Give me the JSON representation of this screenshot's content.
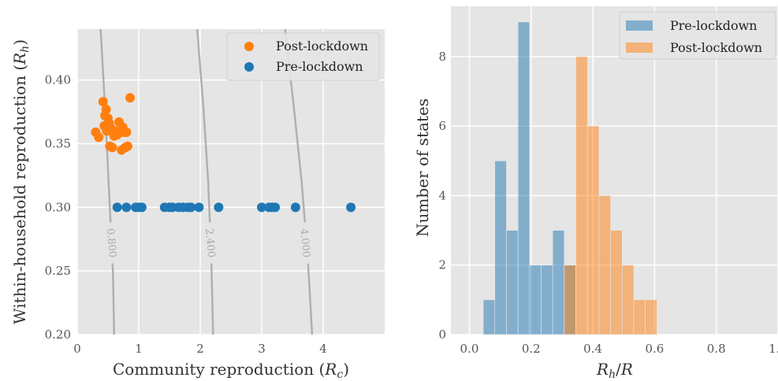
{
  "chart_data": [
    {
      "type": "scatter",
      "xlabel": "Community reproduction (R_c)",
      "xlabel_main": "Community reproduction (",
      "xlabel_sym": "R",
      "xlabel_sub": "c",
      "xlabel_end": ")",
      "ylabel_main": "Within-household reproduction (",
      "ylabel_sym": "R",
      "ylabel_sub": "h",
      "ylabel_end": ")",
      "xlim": [
        0,
        5
      ],
      "ylim": [
        0.2,
        0.44
      ],
      "xticks": [
        0,
        1,
        2,
        3,
        4
      ],
      "yticks": [
        0.2,
        0.25,
        0.3,
        0.35,
        0.4
      ],
      "ytick_labels": [
        "0.20",
        "0.25",
        "0.30",
        "0.35",
        "0.40"
      ],
      "grid": true,
      "legend_position": "top-right",
      "colors": {
        "post": "#ff7f0e",
        "pre": "#1f77b4",
        "contour": "#b0b0b0",
        "background": "#e5e5e5"
      },
      "contours": [
        {
          "label": "0.800",
          "points": [
            [
              0.38,
              0.44
            ],
            [
              0.45,
              0.38
            ],
            [
              0.52,
              0.31
            ],
            [
              0.58,
              0.25
            ],
            [
              0.6,
              0.2
            ]
          ]
        },
        {
          "label": "2.400",
          "points": [
            [
              1.95,
              0.44
            ],
            [
              2.05,
              0.38
            ],
            [
              2.13,
              0.32
            ],
            [
              2.18,
              0.26
            ],
            [
              2.21,
              0.2
            ]
          ]
        },
        {
          "label": "4.000",
          "points": [
            [
              3.38,
              0.44
            ],
            [
              3.52,
              0.38
            ],
            [
              3.65,
              0.32
            ],
            [
              3.75,
              0.26
            ],
            [
              3.82,
              0.2
            ]
          ]
        }
      ],
      "series": [
        {
          "name": "Post-lockdown",
          "points": [
            [
              0.3,
              0.359
            ],
            [
              0.35,
              0.355
            ],
            [
              0.42,
              0.383
            ],
            [
              0.45,
              0.372
            ],
            [
              0.47,
              0.377
            ],
            [
              0.48,
              0.36
            ],
            [
              0.5,
              0.37
            ],
            [
              0.52,
              0.366
            ],
            [
              0.53,
              0.348
            ],
            [
              0.55,
              0.362
            ],
            [
              0.57,
              0.347
            ],
            [
              0.6,
              0.356
            ],
            [
              0.62,
              0.36
            ],
            [
              0.65,
              0.357
            ],
            [
              0.68,
              0.367
            ],
            [
              0.7,
              0.359
            ],
            [
              0.72,
              0.345
            ],
            [
              0.74,
              0.363
            ],
            [
              0.76,
              0.359
            ],
            [
              0.78,
              0.347
            ],
            [
              0.8,
              0.359
            ],
            [
              0.82,
              0.348
            ],
            [
              0.86,
              0.386
            ],
            [
              0.44,
              0.364
            ]
          ]
        },
        {
          "name": "Pre-lockdown",
          "points": [
            [
              0.65,
              0.3
            ],
            [
              0.8,
              0.3
            ],
            [
              0.95,
              0.3
            ],
            [
              1.0,
              0.3
            ],
            [
              1.05,
              0.3
            ],
            [
              1.42,
              0.3
            ],
            [
              1.5,
              0.3
            ],
            [
              1.55,
              0.3
            ],
            [
              1.65,
              0.3
            ],
            [
              1.72,
              0.3
            ],
            [
              1.8,
              0.3
            ],
            [
              1.85,
              0.3
            ],
            [
              1.98,
              0.3
            ],
            [
              2.3,
              0.3
            ],
            [
              3.0,
              0.3
            ],
            [
              3.12,
              0.3
            ],
            [
              3.17,
              0.3
            ],
            [
              3.22,
              0.3
            ],
            [
              3.55,
              0.3
            ],
            [
              4.45,
              0.3
            ]
          ]
        }
      ]
    },
    {
      "type": "bar",
      "xlabel_sym1": "R",
      "xlabel_sub": "h",
      "xlabel_rest": "/",
      "xlabel_sym2": "R",
      "ylabel": "Number of states",
      "xlim": [
        -0.06,
        1.0
      ],
      "ylim": [
        0,
        9.45
      ],
      "xticks": [
        0.0,
        0.2,
        0.4,
        0.6,
        0.8,
        1.0
      ],
      "xtick_labels": [
        "0.0",
        "0.2",
        "0.4",
        "0.6",
        "0.8",
        "1.0"
      ],
      "yticks": [
        0,
        2,
        4,
        6,
        8
      ],
      "grid": true,
      "legend_position": "top-right",
      "bin_width": 0.0375,
      "series": [
        {
          "name": "Pre-lockdown",
          "color": "#1f77b4",
          "bins": [
            [
              0.045,
              1
            ],
            [
              0.0825,
              5
            ],
            [
              0.12,
              3
            ],
            [
              0.1575,
              9
            ],
            [
              0.195,
              2
            ],
            [
              0.2325,
              2
            ],
            [
              0.27,
              3
            ],
            [
              0.3075,
              2
            ]
          ]
        },
        {
          "name": "Post-lockdown",
          "color": "#ff7f0e",
          "bins": [
            [
              0.3075,
              2
            ],
            [
              0.345,
              8
            ],
            [
              0.3825,
              6
            ],
            [
              0.42,
              4
            ],
            [
              0.4575,
              3
            ],
            [
              0.495,
              2
            ],
            [
              0.5325,
              1
            ],
            [
              0.57,
              1
            ]
          ]
        }
      ]
    }
  ]
}
